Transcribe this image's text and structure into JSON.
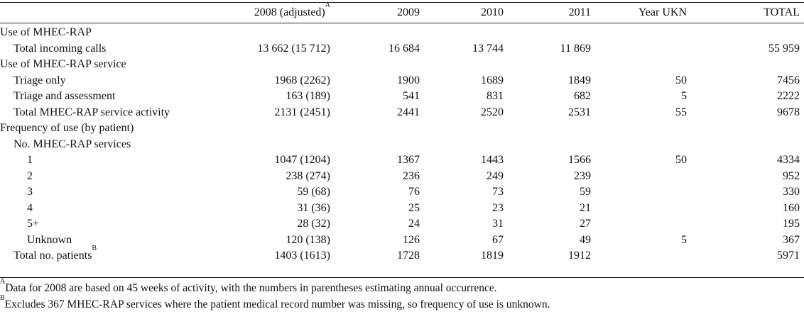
{
  "header": {
    "col1": "2008 (adjusted)",
    "col1_sup": "A",
    "col2": "2009",
    "col3": "2010",
    "col4": "2011",
    "col5": "Year UKN",
    "col6": "TOTAL"
  },
  "rows": [
    {
      "label": "Use of MHEC-RAP",
      "indent": 0,
      "values": [
        "",
        "",
        "",
        "",
        "",
        ""
      ]
    },
    {
      "label": "Total incoming calls",
      "indent": 1,
      "values": [
        "13 662 (15 712)",
        "16 684",
        "13 744",
        "11 869",
        "",
        "55 959"
      ]
    },
    {
      "label": "Use of MHEC-RAP service",
      "indent": 0,
      "values": [
        "",
        "",
        "",
        "",
        "",
        ""
      ]
    },
    {
      "label": "Triage only",
      "indent": 1,
      "values": [
        "1968 (2262)",
        "1900",
        "1689",
        "1849",
        "50",
        "7456"
      ]
    },
    {
      "label": "Triage and assessment",
      "indent": 1,
      "values": [
        "163 (189)",
        "541",
        "831",
        "682",
        "5",
        "2222"
      ]
    },
    {
      "label": "Total MHEC-RAP service activity",
      "indent": 1,
      "values": [
        "2131 (2451)",
        "2441",
        "2520",
        "2531",
        "55",
        "9678"
      ]
    },
    {
      "label": "Frequency of use (by patient)",
      "indent": 0,
      "values": [
        "",
        "",
        "",
        "",
        "",
        ""
      ]
    },
    {
      "label": "No. MHEC-RAP services",
      "indent": 1,
      "values": [
        "",
        "",
        "",
        "",
        "",
        ""
      ]
    },
    {
      "label": "1",
      "indent": 2,
      "values": [
        "1047 (1204)",
        "1367",
        "1443",
        "1566",
        "50",
        "4334"
      ]
    },
    {
      "label": "2",
      "indent": 2,
      "values": [
        "238 (274)",
        "236",
        "249",
        "239",
        "",
        "952"
      ]
    },
    {
      "label": "3",
      "indent": 2,
      "values": [
        "59 (68)",
        "76",
        "73",
        "59",
        "",
        "330"
      ]
    },
    {
      "label": "4",
      "indent": 2,
      "values": [
        "31 (36)",
        "25",
        "23",
        "21",
        "",
        "160"
      ]
    },
    {
      "label": "5+",
      "indent": 2,
      "values": [
        "28 (32)",
        "24",
        "31",
        "27",
        "",
        "195"
      ]
    },
    {
      "label": "Unknown",
      "indent": 2,
      "values": [
        "120 (138)",
        "126",
        "67",
        "49",
        "5",
        "367"
      ]
    },
    {
      "label": "Total no. patients",
      "label_sup": "B",
      "indent": 1,
      "values": [
        "1403 (1613)",
        "1728",
        "1819",
        "1912",
        "",
        "5971"
      ]
    }
  ],
  "footnotes": [
    {
      "mark": "A",
      "text": "Data for 2008 are based on 45 weeks of activity, with the numbers in parentheses estimating annual occurrence."
    },
    {
      "mark": "B",
      "text": "Excludes 367 MHEC-RAP services where the patient medical record number was missing, so frequency of use is unknown."
    }
  ]
}
